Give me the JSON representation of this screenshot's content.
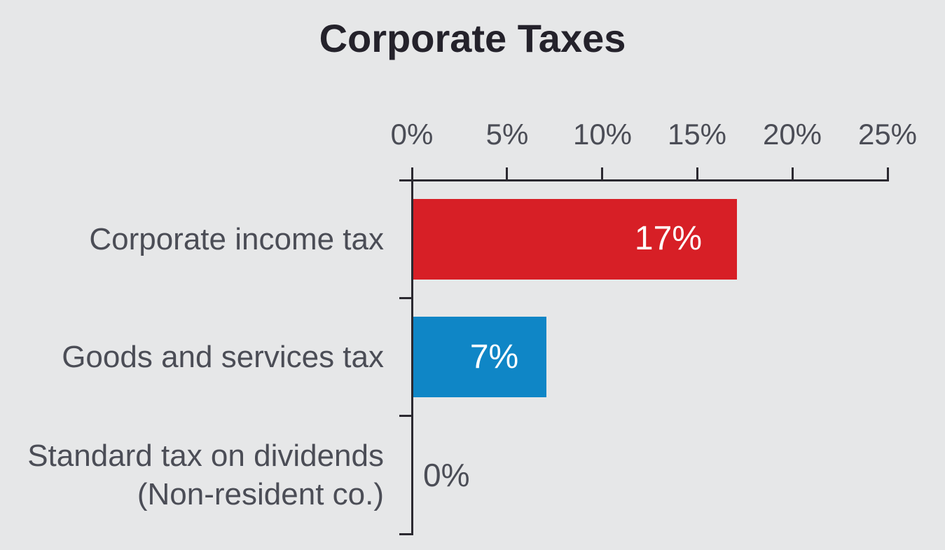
{
  "title": "Corporate Taxes",
  "colors": {
    "background": "#e6e7e8",
    "axis": "#2b2930",
    "title_text": "#24222b",
    "label_text": "#4b4d56",
    "bar_red": "#d71f26",
    "bar_blue": "#0f86c6",
    "bar_value_text": "#ffffff"
  },
  "chart_data": {
    "type": "bar",
    "orientation": "horizontal",
    "title": "Corporate Taxes",
    "categories": [
      "Corporate income tax",
      "Goods and services tax",
      "Standard tax on dividends (Non-resident co.)"
    ],
    "category_label_lines": [
      [
        "Corporate income tax"
      ],
      [
        "Goods and services tax"
      ],
      [
        "Standard tax on dividends",
        "(Non-resident co.)"
      ]
    ],
    "values": [
      17,
      7,
      0
    ],
    "value_labels": [
      "17%",
      "7%",
      "0%"
    ],
    "bar_colors": [
      "#d71f26",
      "#0f86c6",
      null
    ],
    "xlabel": "",
    "ylabel": "",
    "x_axis": {
      "position": "top",
      "min": 0,
      "max": 25,
      "tick_values": [
        0,
        5,
        10,
        15,
        20,
        25
      ],
      "tick_labels": [
        "0%",
        "5%",
        "10%",
        "15%",
        "20%",
        "25%"
      ]
    },
    "grid": false,
    "legend": false
  }
}
